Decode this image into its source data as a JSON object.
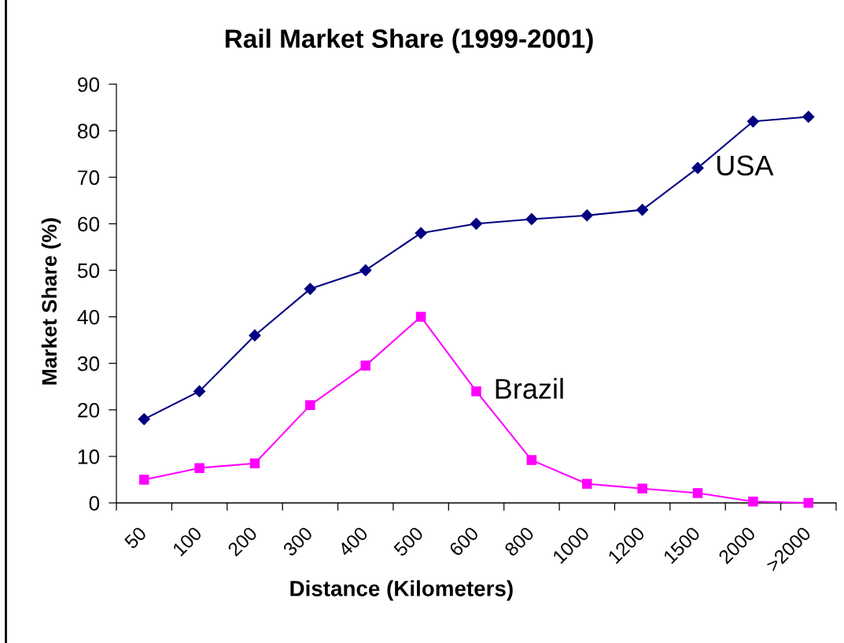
{
  "chart_data": {
    "type": "line",
    "title": "Rail Market Share (1999-2001)",
    "xlabel": "Distance (Kilometers)",
    "ylabel": "Market Share (%)",
    "categories": [
      "50",
      "100",
      "200",
      "300",
      "400",
      "500",
      "600",
      "800",
      "1000",
      "1200",
      "1500",
      "2000",
      ">2000"
    ],
    "series": [
      {
        "name": "USA",
        "color": "#000080",
        "marker": "diamond",
        "values": [
          18,
          24,
          36,
          46,
          50,
          58,
          60,
          61,
          61.8,
          63,
          72,
          82,
          83
        ]
      },
      {
        "name": "Brazil",
        "color": "#ff00ff",
        "marker": "square",
        "values": [
          5,
          7.5,
          8.5,
          21,
          29.5,
          40,
          24,
          9.2,
          4.1,
          3.1,
          2.1,
          0.3,
          0
        ]
      }
    ],
    "ylim": [
      0,
      90
    ],
    "yticks": [
      0,
      10,
      20,
      30,
      40,
      50,
      60,
      70,
      80,
      90
    ],
    "grid": false,
    "legend": false,
    "line_style": "solid"
  }
}
